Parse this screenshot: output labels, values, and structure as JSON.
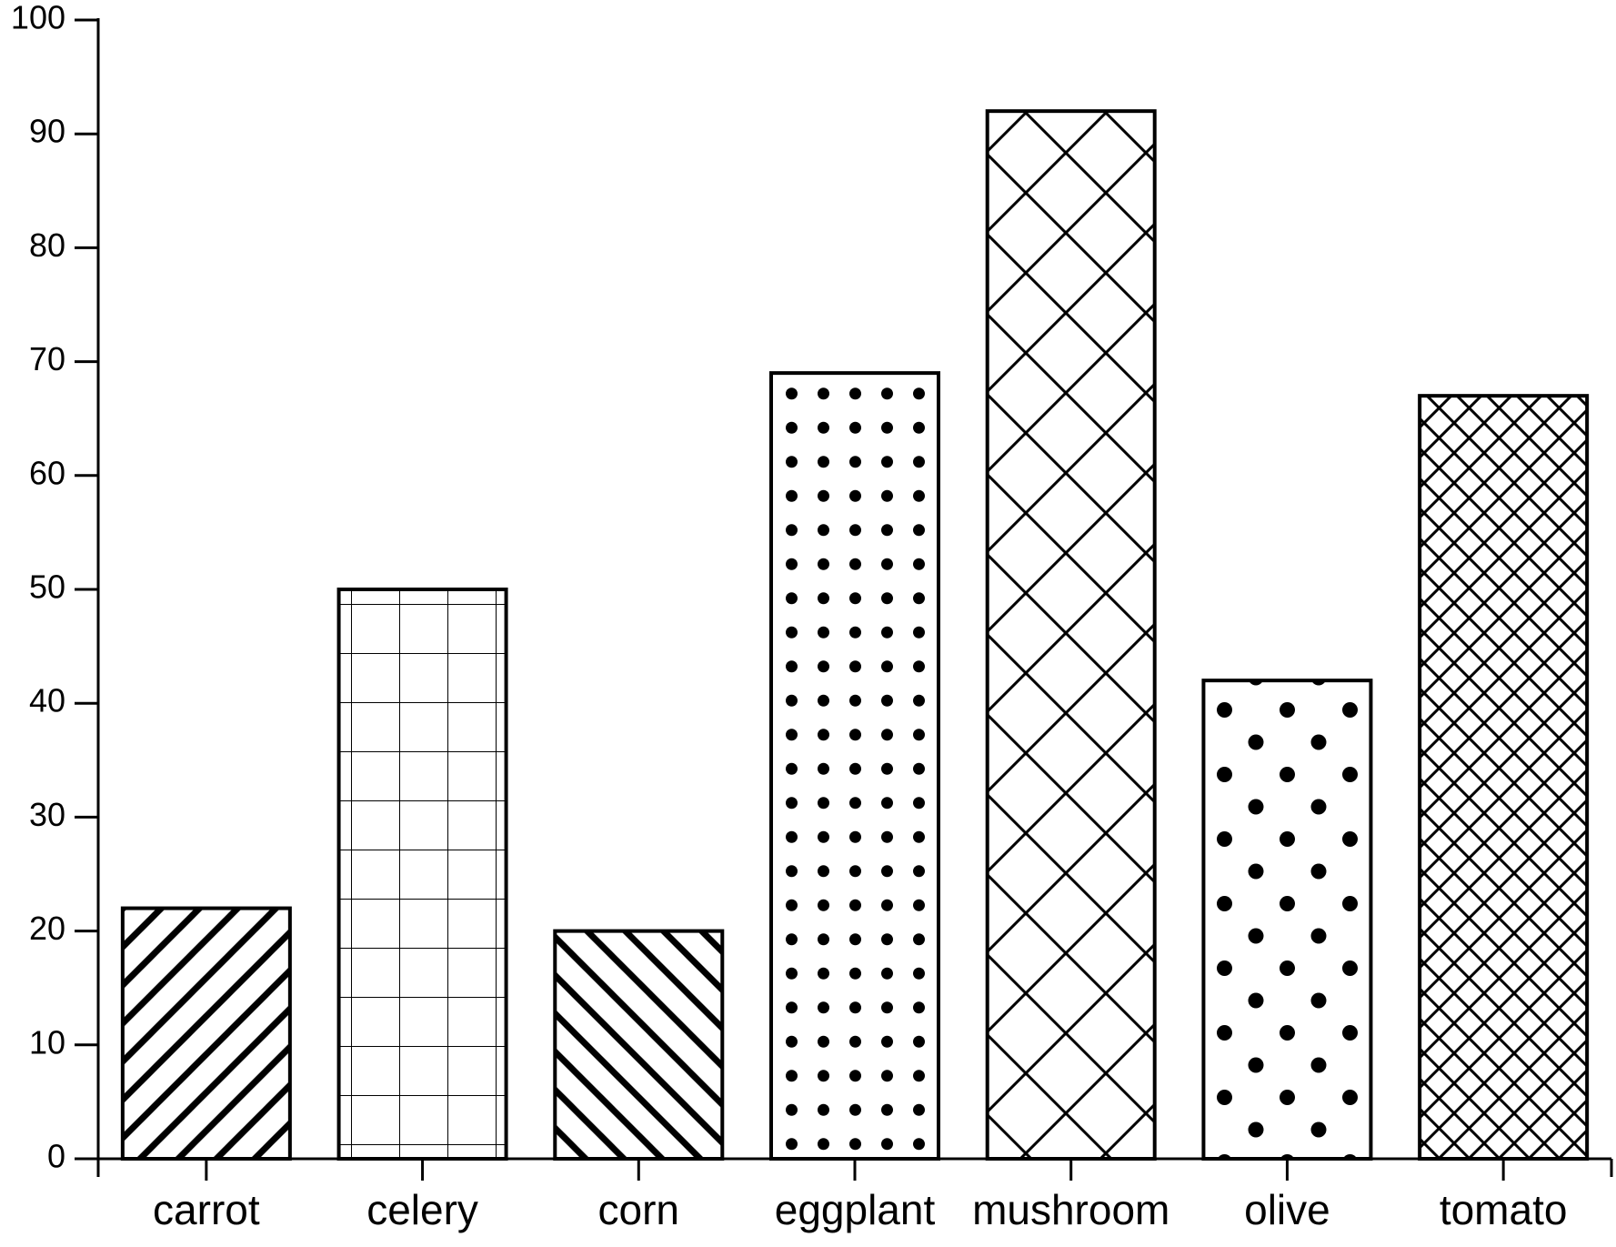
{
  "chart_data": {
    "type": "bar",
    "categories": [
      "carrot",
      "celery",
      "corn",
      "eggplant",
      "mushroom",
      "olive",
      "tomato"
    ],
    "values": [
      22,
      50,
      20,
      69,
      92,
      42,
      67
    ],
    "patterns": [
      "diagonal-up",
      "grid",
      "diagonal-down",
      "small-dots",
      "large-crosshatch",
      "large-dots",
      "small-crosshatch"
    ],
    "title": "",
    "xlabel": "",
    "ylabel": "",
    "ylim": [
      0,
      100
    ],
    "yticks": [
      "0",
      "10",
      "20",
      "30",
      "40",
      "50",
      "60",
      "70",
      "80",
      "90",
      "100"
    ],
    "grid": false,
    "legend": "none",
    "colors": {
      "bar_fill": "#ffffff",
      "bar_stroke": "#000000",
      "pattern_ink": "#000000",
      "axis": "#000000",
      "background": "#ffffff"
    }
  }
}
